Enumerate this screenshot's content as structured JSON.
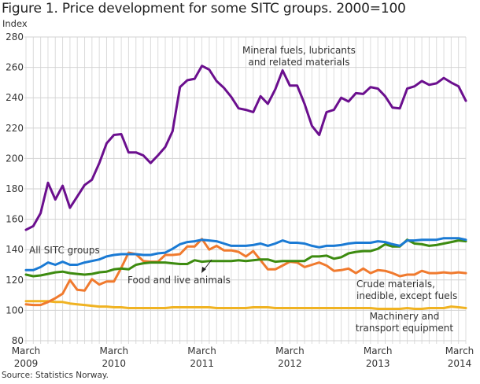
{
  "chart_data": {
    "type": "line",
    "title": "Figure 1. Price development for some SITC groups. 2000=100",
    "ylabel": "Index",
    "xlabel": "",
    "ylim": [
      80,
      280
    ],
    "yticks": [
      80,
      100,
      120,
      140,
      160,
      180,
      200,
      220,
      240,
      260,
      280
    ],
    "grid": true,
    "x_start": "March 2009",
    "x_end": "March 2014",
    "x_frequency": "monthly",
    "xticks": [
      {
        "index": 0,
        "line1": "March",
        "line2": "2009"
      },
      {
        "index": 12,
        "line1": "March",
        "line2": "2010"
      },
      {
        "index": 24,
        "line1": "March",
        "line2": "2011"
      },
      {
        "index": 36,
        "line1": "March",
        "line2": "2012"
      },
      {
        "index": 48,
        "line1": "March",
        "line2": "2013"
      },
      {
        "index": 60,
        "line1": "March",
        "line2": "2014"
      }
    ],
    "series": [
      {
        "name": "Mineral fuels, lubricants and related materials",
        "color": "#6b0f8e",
        "values": [
          153,
          155.5,
          164,
          184,
          173,
          182,
          167.5,
          175,
          182.5,
          186,
          197,
          210,
          215.5,
          216,
          204,
          204,
          202,
          197,
          202,
          207.5,
          218,
          247,
          251.5,
          252.5,
          261,
          258.5,
          251,
          246.5,
          240.5,
          233,
          232,
          230.5,
          241,
          236,
          245.5,
          258,
          248,
          248,
          236,
          221.5,
          215.5,
          230.5,
          232,
          240,
          237.5,
          243,
          242.5,
          247,
          246,
          241,
          233.5,
          233,
          246,
          247.5,
          251,
          248.5,
          249.5,
          253,
          250,
          247.5,
          238
        ]
      },
      {
        "name": "All SITC groups",
        "color": "#1a7ad4",
        "values": [
          126.5,
          126.5,
          128.5,
          131.5,
          130,
          132,
          130,
          130,
          131.5,
          132.5,
          133.5,
          135.5,
          136.5,
          137,
          137,
          137,
          136.5,
          136.5,
          137.5,
          138,
          140.5,
          143.5,
          145,
          145.5,
          146.5,
          146,
          145.5,
          144,
          142.5,
          142.5,
          142.5,
          143,
          144,
          142.5,
          144,
          146,
          144.5,
          144.5,
          144,
          142.5,
          141.5,
          142.5,
          142.5,
          143,
          144,
          144.5,
          144.5,
          144.5,
          145.5,
          145,
          143.5,
          142.5,
          146,
          146,
          146.5,
          146.5,
          146.5,
          147.5,
          147.5,
          147.5,
          146.5
        ]
      },
      {
        "name": "Food and live animals",
        "color": "#3d8b10",
        "values": [
          123.5,
          122.5,
          123,
          124,
          125,
          125.5,
          124.5,
          124,
          123.5,
          124,
          125,
          125.5,
          127,
          127.5,
          127,
          130,
          131,
          131.5,
          131.5,
          131.5,
          131,
          130.5,
          130.5,
          133,
          132,
          132.5,
          132.5,
          132.5,
          132.5,
          133,
          132.5,
          133,
          133.5,
          133.5,
          132,
          132.5,
          132.5,
          132.5,
          132.5,
          135.5,
          135.5,
          136,
          134,
          135,
          137.5,
          138.5,
          139,
          139,
          140.5,
          143.5,
          142,
          142,
          146.5,
          144,
          143.5,
          142.5,
          143,
          144,
          145,
          146,
          145.5
        ]
      },
      {
        "name": "Crude materials, inedible, except fuels",
        "color": "#f07a2e",
        "values": [
          104,
          103.5,
          103.5,
          105.5,
          108,
          111,
          120,
          113.5,
          113,
          120.5,
          117,
          119,
          119,
          128,
          138,
          137,
          132.5,
          132,
          132,
          136.5,
          136.5,
          137,
          142,
          142,
          147,
          140,
          142.5,
          139.5,
          139.5,
          138.5,
          135.5,
          139,
          133,
          127,
          127,
          129.5,
          132,
          131.5,
          128.5,
          130,
          131.5,
          129.5,
          126,
          126.5,
          127.5,
          124.5,
          127.5,
          124.5,
          126.5,
          126,
          124.5,
          122.5,
          123.5,
          123.5,
          126,
          124.5,
          124.5,
          125,
          124.5,
          125,
          124.5
        ]
      },
      {
        "name": "Machinery and transport equipment",
        "color": "#f0b323",
        "values": [
          106,
          106,
          106,
          106,
          105.5,
          105.5,
          104.5,
          104,
          103.5,
          103,
          102.5,
          102.5,
          102,
          102,
          101.5,
          101.5,
          101.5,
          101.5,
          101.5,
          101.5,
          102,
          102,
          102,
          102,
          102,
          102,
          101.5,
          101.5,
          101.5,
          101.5,
          101.5,
          102,
          102,
          102,
          101.5,
          101.5,
          101.5,
          101.5,
          101.5,
          101.5,
          101.5,
          101.5,
          101.5,
          101.5,
          101.5,
          101.5,
          101.5,
          101.5,
          101,
          101,
          101,
          101,
          101.5,
          101,
          101,
          101.5,
          101.5,
          101.5,
          102.5,
          102,
          101.5
        ]
      }
    ],
    "annotations": [
      {
        "id": "mineral",
        "lines": [
          "Mineral fuels, lubricants",
          "and related materials"
        ]
      },
      {
        "id": "all",
        "lines": [
          "All SITC groups"
        ]
      },
      {
        "id": "food",
        "lines": [
          "Food and live animals"
        ]
      },
      {
        "id": "crude",
        "lines": [
          "Crude materials,",
          "inedible, except fuels"
        ]
      },
      {
        "id": "machinery",
        "lines": [
          "Machinery and",
          "transport equipment"
        ]
      }
    ]
  },
  "header": {
    "title": "Figure 1. Price development for some SITC groups. 2000=100",
    "y_unit_label": "Index"
  },
  "footer": {
    "source": "Source: Statistics Norway."
  }
}
